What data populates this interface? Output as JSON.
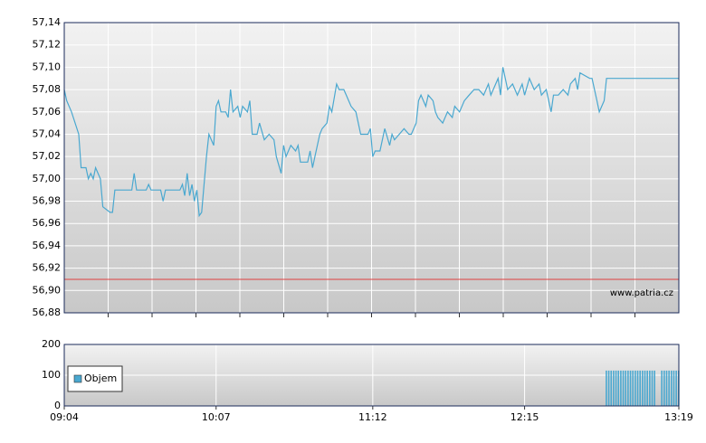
{
  "chart_data": [
    {
      "type": "line",
      "xlim": [
        "09:04",
        "13:19"
      ],
      "ylim": [
        56.88,
        57.14
      ],
      "yticks": [
        {
          "value": 56.88,
          "label": "56,88"
        },
        {
          "value": 56.9,
          "label": "56,90"
        },
        {
          "value": 56.92,
          "label": "56,92"
        },
        {
          "value": 56.94,
          "label": "56,94"
        },
        {
          "value": 56.96,
          "label": "56,96"
        },
        {
          "value": 56.98,
          "label": "56,98"
        },
        {
          "value": 57,
          "label": "57,00"
        },
        {
          "value": 57.02,
          "label": "57,02"
        },
        {
          "value": 57.04,
          "label": "57,04"
        },
        {
          "value": 57.06,
          "label": "57,06"
        },
        {
          "value": 57.08,
          "label": "57,08"
        },
        {
          "value": 57.1,
          "label": "57,10"
        },
        {
          "value": 57.12,
          "label": "57,12"
        },
        {
          "value": 57.14,
          "label": "57,14"
        }
      ],
      "reference_line": {
        "value": 56.91,
        "color": "#e04040"
      },
      "watermark": "www.patria.cz",
      "grid": true,
      "x": [
        "09:04",
        "09:05",
        "09:07",
        "09:10",
        "09:11",
        "09:13",
        "09:14",
        "09:15",
        "09:16",
        "09:17",
        "09:19",
        "09:20",
        "09:23",
        "09:24",
        "09:25",
        "09:32",
        "09:33",
        "09:34",
        "09:38",
        "09:39",
        "09:40",
        "09:44",
        "09:45",
        "09:46",
        "09:52",
        "09:53",
        "09:54",
        "09:55",
        "09:56",
        "09:57",
        "09:58",
        "09:59",
        "10:00",
        "10:01",
        "10:03",
        "10:04",
        "10:06",
        "10:07",
        "10:08",
        "10:09",
        "10:11",
        "10:12",
        "10:13",
        "10:14",
        "10:16",
        "10:17",
        "10:18",
        "10:20",
        "10:21",
        "10:22",
        "10:24",
        "10:25",
        "10:27",
        "10:29",
        "10:31",
        "10:32",
        "10:34",
        "10:35",
        "10:36",
        "10:38",
        "10:40",
        "10:41",
        "10:42",
        "10:45",
        "10:46",
        "10:47",
        "10:48",
        "10:50",
        "10:51",
        "10:53",
        "10:54",
        "10:55",
        "10:57",
        "10:58",
        "11:00",
        "11:02",
        "11:03",
        "11:05",
        "11:07",
        "11:10",
        "11:11",
        "11:12",
        "11:13",
        "11:15",
        "11:17",
        "11:19",
        "11:20",
        "11:21",
        "11:23",
        "11:25",
        "11:27",
        "11:28",
        "11:30",
        "11:31",
        "11:32",
        "11:34",
        "11:35",
        "11:37",
        "11:38",
        "11:39",
        "11:41",
        "11:43",
        "11:45",
        "11:46",
        "11:48",
        "11:50",
        "11:52",
        "11:54",
        "11:56",
        "11:58",
        "12:00",
        "12:01",
        "12:04",
        "12:05",
        "12:06",
        "12:08",
        "12:10",
        "12:12",
        "12:14",
        "12:15",
        "12:17",
        "12:19",
        "12:21",
        "12:22",
        "12:24",
        "12:26",
        "12:27",
        "12:29",
        "12:31",
        "12:33",
        "12:34",
        "12:36",
        "12:37",
        "12:38",
        "12:42",
        "12:43",
        "12:45",
        "12:46",
        "12:48",
        "12:49",
        "13:19"
      ],
      "series": [
        {
          "color": "#4aa8d0",
          "values": [
            57.08,
            57.07,
            57.06,
            57.04,
            57.01,
            57.01,
            57.0,
            57.005,
            57.0,
            57.01,
            57.0,
            56.975,
            56.97,
            56.97,
            56.99,
            56.99,
            57.005,
            56.99,
            56.99,
            56.995,
            56.99,
            56.99,
            56.98,
            56.99,
            56.99,
            56.995,
            56.985,
            57.005,
            56.985,
            56.995,
            56.98,
            56.99,
            56.967,
            56.97,
            57.02,
            57.04,
            57.03,
            57.065,
            57.07,
            57.06,
            57.06,
            57.055,
            57.08,
            57.06,
            57.065,
            57.055,
            57.065,
            57.06,
            57.07,
            57.04,
            57.04,
            57.05,
            57.035,
            57.04,
            57.035,
            57.02,
            57.005,
            57.03,
            57.02,
            57.03,
            57.025,
            57.03,
            57.015,
            57.015,
            57.025,
            57.01,
            57.02,
            57.04,
            57.045,
            57.05,
            57.065,
            57.06,
            57.085,
            57.08,
            57.08,
            57.07,
            57.065,
            57.06,
            57.04,
            57.04,
            57.045,
            57.02,
            57.025,
            57.025,
            57.045,
            57.03,
            57.04,
            57.035,
            57.04,
            57.045,
            57.04,
            57.04,
            57.05,
            57.07,
            57.075,
            57.065,
            57.075,
            57.07,
            57.06,
            57.055,
            57.05,
            57.06,
            57.055,
            57.065,
            57.06,
            57.07,
            57.075,
            57.08,
            57.08,
            57.075,
            57.085,
            57.075,
            57.09,
            57.075,
            57.1,
            57.08,
            57.085,
            57.075,
            57.085,
            57.075,
            57.09,
            57.08,
            57.085,
            57.075,
            57.08,
            57.06,
            57.075,
            57.075,
            57.08,
            57.075,
            57.085,
            57.09,
            57.08,
            57.095,
            57.09,
            57.09,
            57.07,
            57.06,
            57.07,
            57.09,
            57.09
          ]
        }
      ]
    },
    {
      "type": "bar",
      "xlim": [
        "09:04",
        "13:19"
      ],
      "xticks": [
        "09:04",
        "10:07",
        "11:12",
        "12:15",
        "13:19"
      ],
      "ylim": [
        0,
        200
      ],
      "yticks": [
        0,
        100,
        200
      ],
      "grid": true,
      "legend": "upper-left",
      "x": [
        "12:49",
        "12:50",
        "12:51",
        "12:52",
        "12:53",
        "12:54",
        "12:55",
        "12:56",
        "12:57",
        "12:58",
        "12:59",
        "13:00",
        "13:01",
        "13:02",
        "13:03",
        "13:04",
        "13:05",
        "13:06",
        "13:07",
        "13:08",
        "13:09",
        "13:12",
        "13:13",
        "13:14",
        "13:15",
        "13:16",
        "13:17",
        "13:18",
        "13:19"
      ],
      "series": [
        {
          "name": "Objem",
          "color": "#4aa8d0",
          "values": [
            115,
            115,
            115,
            115,
            115,
            115,
            115,
            115,
            115,
            115,
            115,
            115,
            115,
            115,
            115,
            115,
            115,
            115,
            115,
            115,
            115,
            115,
            115,
            115,
            115,
            115,
            115,
            115,
            115
          ]
        }
      ]
    }
  ]
}
